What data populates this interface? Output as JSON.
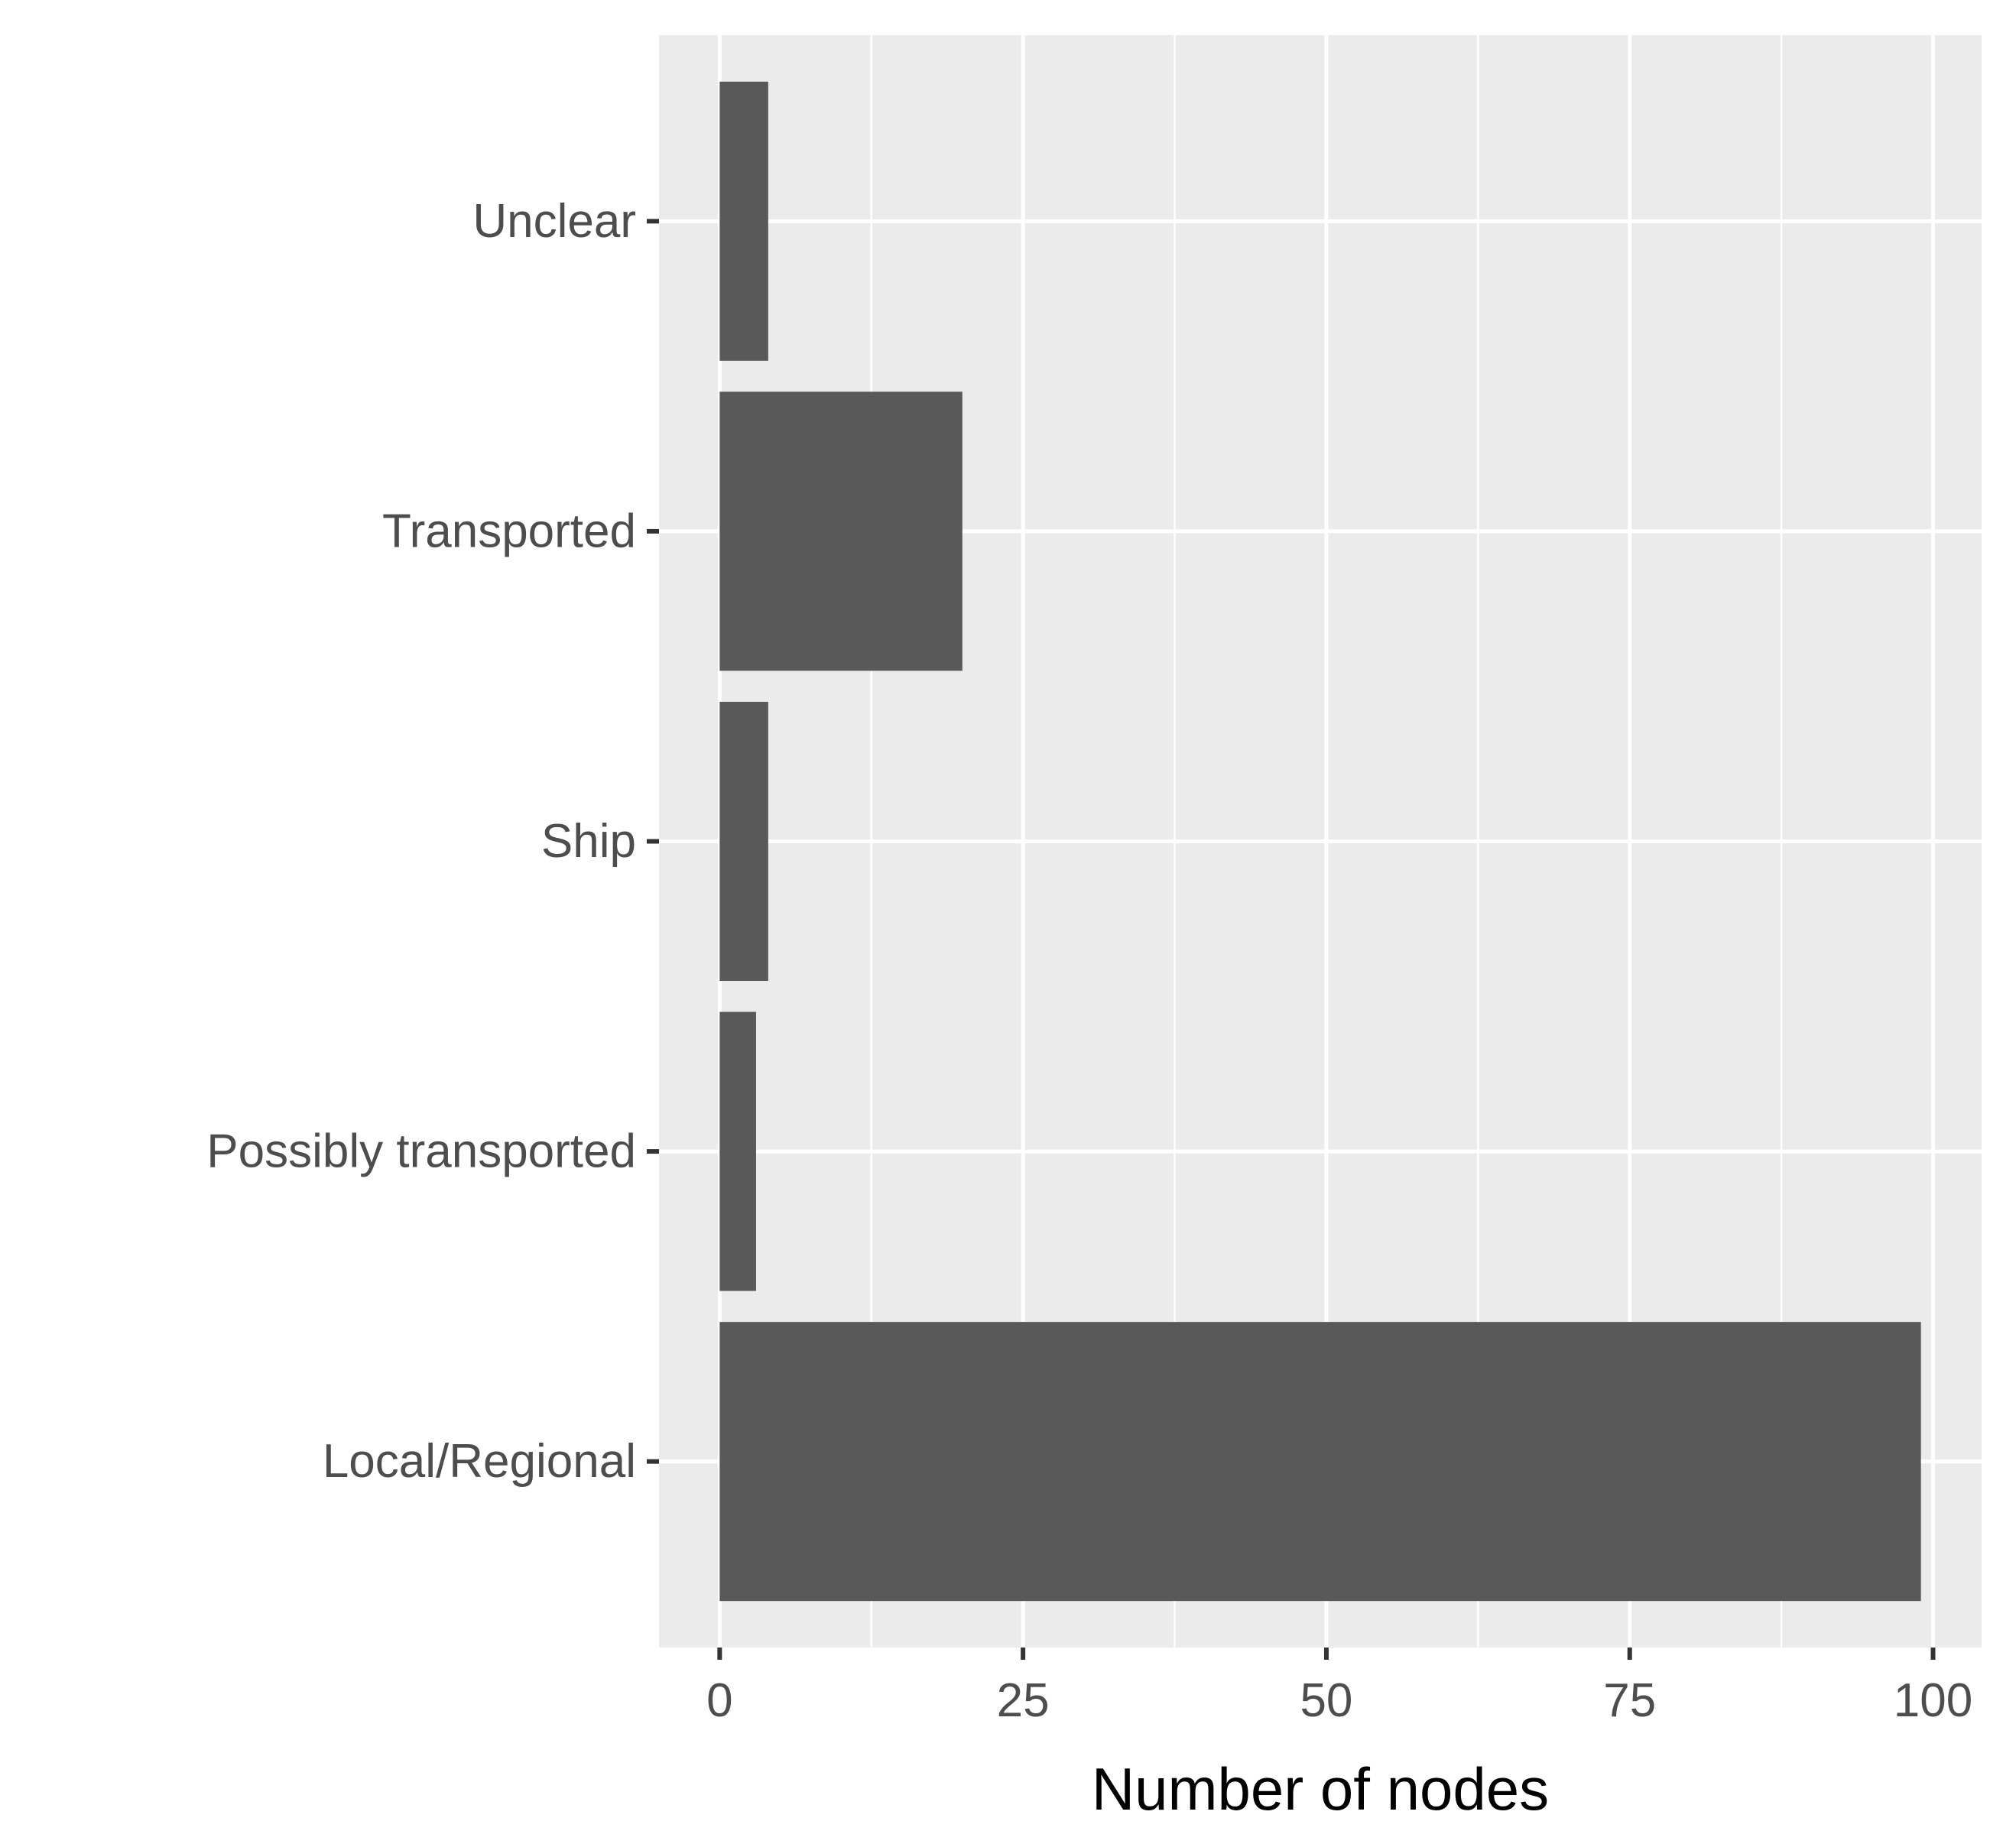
{
  "chart_data": {
    "type": "bar",
    "orientation": "horizontal",
    "title": "",
    "xlabel": "Number of nodes",
    "ylabel": "",
    "categories": [
      "Unclear",
      "Transported",
      "Ship",
      "Possibly transported",
      "Local/Regional"
    ],
    "values": [
      4,
      20,
      4,
      3,
      99
    ],
    "xlim": [
      -5,
      104
    ],
    "x_ticks": [
      0,
      25,
      50,
      75,
      100
    ],
    "x_tick_labels": [
      "0",
      "25",
      "50",
      "75",
      "100"
    ],
    "grid": true,
    "legend": "none",
    "colors": {
      "bar": "#595959",
      "panel": "#ebebeb",
      "grid": "#ffffff",
      "text": "#4d4d4d",
      "tick": "#333333"
    }
  }
}
